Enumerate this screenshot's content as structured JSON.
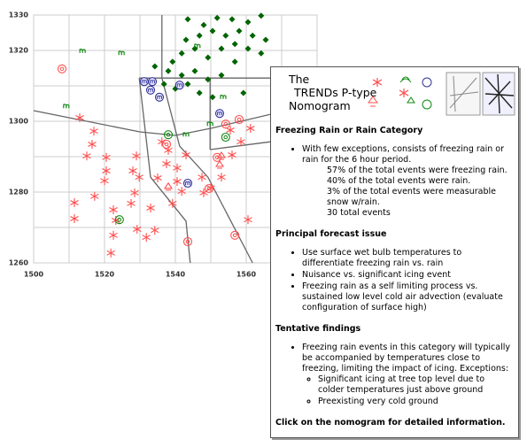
{
  "chart_data": {
    "type": "scatter",
    "xlim": [
      1500,
      1580
    ],
    "ylim": [
      1260,
      1330
    ],
    "xticks": [
      1500,
      1520,
      1540,
      1560
    ],
    "yticks": [
      1260,
      1280,
      1300,
      1320,
      1330
    ],
    "x_minor_ticks": [
      1510,
      1530,
      1550,
      1570
    ],
    "y_minor_ticks": [
      1270,
      1290,
      1310
    ],
    "grid": true,
    "grid_color": "#cccccc",
    "boundary_color": "#666666",
    "boundaries": [
      {
        "x": [
          1500,
          1530,
          1540,
          1550,
          1567
        ],
        "y": [
          1303,
          1297,
          1296,
          1298,
          1302
        ]
      },
      {
        "x": [
          1536.2,
          1536.2
        ],
        "y": [
          1330,
          1312.2
        ]
      },
      {
        "x": [
          1529.8,
          1566.8
        ],
        "y": [
          1312.2,
          1312.2
        ]
      },
      {
        "x": [
          1529.8,
          1533,
          1543,
          1544.2
        ],
        "y": [
          1312.2,
          1284.2,
          1271.8,
          1260
        ]
      },
      {
        "x": [
          1536.2,
          1541.2,
          1549.2,
          1561.8
        ],
        "y": [
          1312.2,
          1293,
          1284.2,
          1260
        ]
      },
      {
        "x": [
          1549.8,
          1549.8
        ],
        "y": [
          1312.2,
          1292
        ]
      },
      {
        "x": [
          1549.8,
          1566.8
        ],
        "y": [
          1292,
          1294.2
        ]
      }
    ],
    "series": [
      {
        "marker": "asterisk",
        "color": "#ff4d4d",
        "x": [
          1513,
          1517,
          1516.5,
          1515,
          1520.5,
          1520.5,
          1520,
          1511.5,
          1511.5,
          1517.2,
          1522.5,
          1523.2,
          1522.5,
          1521.8,
          1529,
          1528,
          1529.8,
          1528.5,
          1529.2,
          1527.5,
          1533,
          1535,
          1534.2,
          1531.8,
          1536.2,
          1538,
          1537.5,
          1540.5,
          1540.5,
          1541.8,
          1539.2,
          1543,
          1547.5,
          1550,
          1548,
          1553,
          1556,
          1561.2,
          1555.5,
          1558.5,
          1560.5
        ],
        "y": [
          1301,
          1297.2,
          1293.5,
          1290.2,
          1289.8,
          1286,
          1283.2,
          1277,
          1272.5,
          1278.8,
          1275,
          1272,
          1267.8,
          1262.8,
          1290.2,
          1286,
          1284.2,
          1279.8,
          1269.5,
          1276.8,
          1275.5,
          1284,
          1269.2,
          1267.2,
          1294.2,
          1291.8,
          1288,
          1286.8,
          1283,
          1280.2,
          1276.8,
          1290.5,
          1284.2,
          1281.2,
          1279.8,
          1284.2,
          1290.5,
          1298,
          1297.5,
          1294.2,
          1272.2
        ]
      },
      {
        "marker": "diamond",
        "color": "#006400",
        "x": [
          1543.5,
          1548,
          1551.8,
          1556,
          1560.5,
          1564.2,
          1543,
          1546.8,
          1550.5,
          1554.2,
          1558,
          1561.8,
          1565.5,
          1539.2,
          1541.8,
          1545.5,
          1549.2,
          1553,
          1556.8,
          1560.5,
          1564.2,
          1538,
          1541.8,
          1545.5,
          1549.2,
          1553,
          1556.8,
          1536.8,
          1540,
          1543.5,
          1546.8,
          1550.5,
          1559.2,
          1534.2
        ],
        "y": [
          1328.8,
          1327.2,
          1329.2,
          1328.8,
          1328,
          1329.8,
          1323,
          1324.2,
          1325.5,
          1324.2,
          1325.5,
          1324.2,
          1323,
          1316.8,
          1319.2,
          1320.5,
          1318,
          1320.5,
          1321.8,
          1320.5,
          1319.2,
          1314.2,
          1313,
          1314.2,
          1311.8,
          1313,
          1316.8,
          1310.5,
          1309.2,
          1310.5,
          1308,
          1306.8,
          1308,
          1315.5
        ]
      },
      {
        "marker": "m",
        "color": "#118811",
        "x": [
          1513.8,
          1509.2,
          1524.8,
          1543,
          1546.2,
          1549.8,
          1553.5
        ],
        "y": [
          1319.8,
          1304.2,
          1319.2,
          1296.2,
          1321.2,
          1299.2,
          1306.8
        ]
      },
      {
        "marker": "circle-dot",
        "color": "#ff4d4d",
        "x": [
          1508,
          1537.5,
          1543.5,
          1549.5,
          1556.8,
          1551.8,
          1558,
          1554.2
        ],
        "y": [
          1314.8,
          1293.5,
          1266,
          1281,
          1267.8,
          1289.8,
          1300.5,
          1299.2
        ]
      },
      {
        "marker": "circle-m",
        "color": "#333399",
        "x": [
          1531.2,
          1533.5,
          1533,
          1535.5,
          1541.2,
          1543.5,
          1552.5
        ],
        "y": [
          1311.2,
          1311.2,
          1308.8,
          1306.8,
          1310.2,
          1282.5,
          1302.2
        ]
      },
      {
        "marker": "circle-dot",
        "color": "#118811",
        "x": [
          1524.2,
          1538,
          1554.2
        ],
        "y": [
          1272.2,
          1296.2,
          1295.5
        ]
      },
      {
        "marker": "triangle",
        "color": "#ff4d4d",
        "x": [
          1538,
          1552.5,
          1553
        ],
        "y": [
          1281.8,
          1288,
          1290.5
        ]
      }
    ]
  },
  "panel": {
    "title": [
      "The",
      "TRENDs P-type",
      "Nomogram"
    ],
    "sections": [
      {
        "heading": "Freezing Rain or Rain Category",
        "bullets": [
          {
            "text": "With few exceptions, consists of freezing rain or rain for the 6 hour period.",
            "lines": [
              "57% of the total events were freezing rain.",
              "40% of the total events were rain.",
              "3% of the total events were measurable snow w/rain.",
              "30 total events"
            ]
          }
        ]
      },
      {
        "heading": "Principal forecast issue",
        "bullets": [
          {
            "text": "Use surface wet bulb temperatures to differentiate freezing rain vs. rain"
          },
          {
            "text": "Nuisance vs. significant icing event"
          },
          {
            "text": "Freezing rain as a self limiting process vs. sustained low level cold air advection (evaluate configuration of surface high)"
          }
        ]
      },
      {
        "heading": "Tentative findings",
        "bullets": [
          {
            "text": "Freezing rain events in this category will typically be accompanied by temperatures close to freezing, limiting the impact of icing. Exceptions:",
            "sub": [
              "Significant icing at tree top level due to colder temperatures just above ground",
              "Preexisting very cold ground"
            ]
          }
        ]
      }
    ],
    "footer": "Click on the nomogram for detailed information."
  }
}
